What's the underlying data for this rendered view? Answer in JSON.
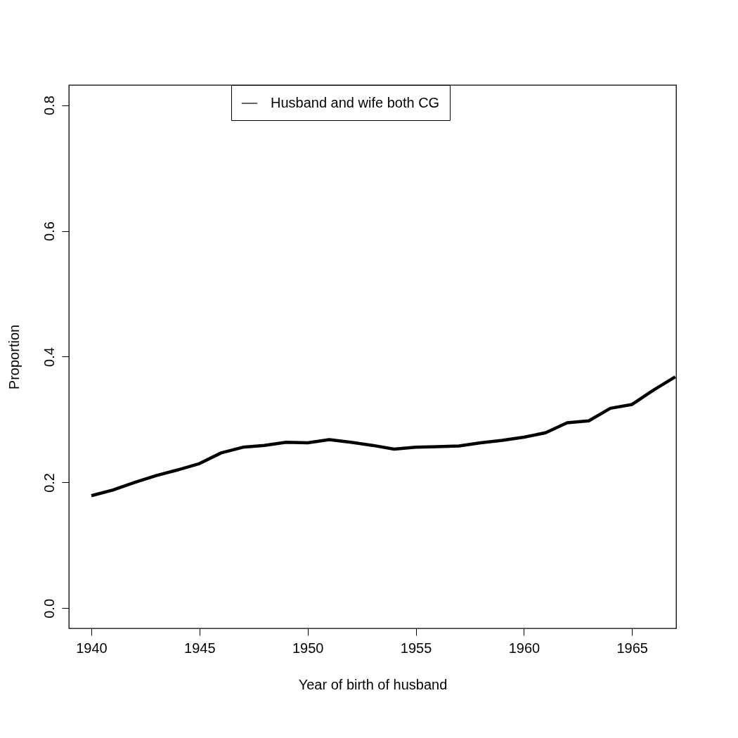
{
  "chart_data": {
    "type": "line",
    "xlabel": "Year of birth of husband",
    "ylabel": "Proportion",
    "x": [
      1940,
      1941,
      1942,
      1943,
      1944,
      1945,
      1946,
      1947,
      1948,
      1949,
      1950,
      1951,
      1952,
      1953,
      1954,
      1955,
      1956,
      1957,
      1958,
      1959,
      1960,
      1961,
      1962,
      1963,
      1964,
      1965,
      1966,
      1967
    ],
    "series": [
      {
        "name": "Husband and wife both CG",
        "color": "#000000",
        "values": [
          0.179,
          0.188,
          0.2,
          0.211,
          0.22,
          0.23,
          0.247,
          0.256,
          0.259,
          0.264,
          0.263,
          0.268,
          0.264,
          0.259,
          0.253,
          0.256,
          0.257,
          0.258,
          0.263,
          0.267,
          0.272,
          0.279,
          0.295,
          0.298,
          0.318,
          0.324,
          0.347,
          0.368
        ]
      }
    ],
    "xlim": [
      1938.96,
      1967.04
    ],
    "xticks": [
      1940,
      1945,
      1950,
      1955,
      1960,
      1965
    ],
    "ylim": [
      -0.032,
      0.832
    ],
    "yticks": [
      {
        "value": 0,
        "label": "0.0"
      },
      0.2,
      0.4,
      0.6,
      0.8
    ],
    "grid": false,
    "legend": "top",
    "marker": "none",
    "line_style": "solid"
  }
}
